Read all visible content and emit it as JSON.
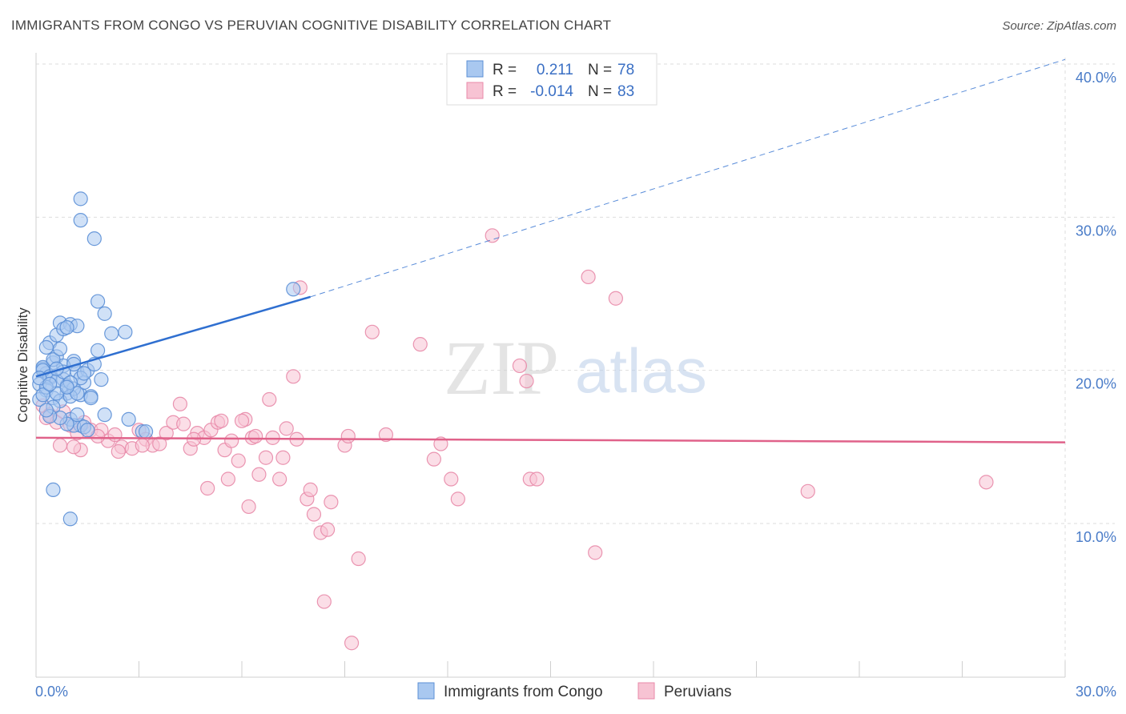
{
  "header": {
    "title": "IMMIGRANTS FROM CONGO VS PERUVIAN COGNITIVE DISABILITY CORRELATION CHART",
    "source": "Source: ZipAtlas.com"
  },
  "watermark": {
    "zip": "ZIP",
    "atlas": "atlas"
  },
  "legend": {
    "r_label": "R =",
    "n_label": "N =",
    "rows": [
      {
        "r": "0.211",
        "n": "78",
        "color": "#a9c8f0"
      },
      {
        "r": "-0.014",
        "n": "83",
        "color": "#f5b8cb"
      }
    ]
  },
  "colors": {
    "blue_fill": "#a9c8f0",
    "blue_stroke": "#5b8fd6",
    "blue_line": "#2f6fd0",
    "pink_fill": "#f7c3d3",
    "pink_stroke": "#e88aa8",
    "pink_line": "#e0628a"
  },
  "chart_data": {
    "type": "scatter",
    "title": "IMMIGRANTS FROM CONGO VS PERUVIAN COGNITIVE DISABILITY CORRELATION CHART",
    "xlabel": "",
    "ylabel": "Cognitive Disability",
    "xlim": [
      0,
      30
    ],
    "ylim": [
      0,
      40
    ],
    "x_tick_labels": [
      "0.0%",
      "30.0%"
    ],
    "y_ticks": [
      10,
      20,
      30,
      40
    ],
    "y_tick_labels": [
      "10.0%",
      "20.0%",
      "30.0%",
      "40.0%"
    ],
    "grid": true,
    "legend_position": "bottom",
    "series": [
      {
        "name": "Immigrants from Congo",
        "color": "#a9c8f0",
        "r": 0.211,
        "n": 78,
        "trend": {
          "x": [
            0.0,
            8.0
          ],
          "y": [
            19.6,
            24.8
          ],
          "dashed_to": [
            30.0,
            40.3
          ]
        },
        "points": [
          [
            0.1,
            19.1
          ],
          [
            0.2,
            20.1
          ],
          [
            0.3,
            18.7
          ],
          [
            0.4,
            21.8
          ],
          [
            0.5,
            20.5
          ],
          [
            0.6,
            22.3
          ],
          [
            0.7,
            23.1
          ],
          [
            0.8,
            19.4
          ],
          [
            0.5,
            18.2
          ],
          [
            0.9,
            18.5
          ],
          [
            1.0,
            23.0
          ],
          [
            1.1,
            20.6
          ],
          [
            1.2,
            19.9
          ],
          [
            1.3,
            18.4
          ],
          [
            1.5,
            20.0
          ],
          [
            1.4,
            19.2
          ],
          [
            0.3,
            19.8
          ],
          [
            0.6,
            20.9
          ],
          [
            0.8,
            22.7
          ],
          [
            1.2,
            22.9
          ],
          [
            1.3,
            16.4
          ],
          [
            1.6,
            18.3
          ],
          [
            1.8,
            21.3
          ],
          [
            1.9,
            19.4
          ],
          [
            2.0,
            23.7
          ],
          [
            0.2,
            20.2
          ],
          [
            0.4,
            19.5
          ],
          [
            0.9,
            19.0
          ],
          [
            1.1,
            18.8
          ],
          [
            0.7,
            18.0
          ],
          [
            1.0,
            16.8
          ],
          [
            1.7,
            20.4
          ],
          [
            2.2,
            22.4
          ],
          [
            2.6,
            22.5
          ],
          [
            2.7,
            16.8
          ],
          [
            3.1,
            16.0
          ],
          [
            3.2,
            16.0
          ],
          [
            1.8,
            24.5
          ],
          [
            1.3,
            29.8
          ],
          [
            1.7,
            28.6
          ],
          [
            1.3,
            31.2
          ],
          [
            7.5,
            25.3
          ],
          [
            0.5,
            12.2
          ],
          [
            1.0,
            10.3
          ],
          [
            0.1,
            18.1
          ],
          [
            0.2,
            20.0
          ],
          [
            0.3,
            21.5
          ],
          [
            0.4,
            19.6
          ],
          [
            0.6,
            19.3
          ],
          [
            0.8,
            20.3
          ],
          [
            1.0,
            18.3
          ],
          [
            1.1,
            16.4
          ],
          [
            0.9,
            16.5
          ],
          [
            1.4,
            16.3
          ],
          [
            1.5,
            16.1
          ],
          [
            1.6,
            18.2
          ],
          [
            2.0,
            17.1
          ],
          [
            0.5,
            17.6
          ],
          [
            0.7,
            16.9
          ],
          [
            0.6,
            18.5
          ],
          [
            0.4,
            17.0
          ],
          [
            1.2,
            17.1
          ],
          [
            0.3,
            18.9
          ],
          [
            0.5,
            20.7
          ],
          [
            0.7,
            21.4
          ],
          [
            0.9,
            22.8
          ],
          [
            1.1,
            20.4
          ],
          [
            1.3,
            19.5
          ],
          [
            0.2,
            18.4
          ],
          [
            0.1,
            19.5
          ],
          [
            0.8,
            19.9
          ],
          [
            0.6,
            20.1
          ],
          [
            1.0,
            19.2
          ],
          [
            1.2,
            18.5
          ],
          [
            0.4,
            19.1
          ],
          [
            0.9,
            18.9
          ],
          [
            1.4,
            19.8
          ],
          [
            0.3,
            17.4
          ]
        ]
      },
      {
        "name": "Peruvians",
        "color": "#f7c3d3",
        "r": -0.014,
        "n": 83,
        "trend": {
          "x": [
            0.0,
            30.0
          ],
          "y": [
            15.6,
            15.3
          ]
        },
        "points": [
          [
            0.2,
            17.7
          ],
          [
            0.4,
            17.1
          ],
          [
            0.6,
            16.6
          ],
          [
            0.8,
            17.3
          ],
          [
            1.0,
            16.4
          ],
          [
            1.2,
            15.9
          ],
          [
            1.4,
            16.6
          ],
          [
            1.6,
            16.1
          ],
          [
            1.9,
            16.1
          ],
          [
            2.1,
            15.4
          ],
          [
            2.3,
            15.8
          ],
          [
            2.5,
            15.0
          ],
          [
            2.8,
            14.9
          ],
          [
            3.0,
            16.1
          ],
          [
            3.2,
            15.5
          ],
          [
            3.4,
            15.1
          ],
          [
            3.6,
            15.2
          ],
          [
            3.8,
            15.9
          ],
          [
            4.0,
            16.6
          ],
          [
            4.3,
            16.5
          ],
          [
            4.5,
            14.9
          ],
          [
            4.7,
            15.9
          ],
          [
            4.9,
            15.6
          ],
          [
            5.1,
            16.1
          ],
          [
            5.3,
            16.6
          ],
          [
            5.5,
            14.8
          ],
          [
            5.7,
            15.4
          ],
          [
            5.9,
            14.1
          ],
          [
            6.1,
            16.8
          ],
          [
            6.3,
            15.6
          ],
          [
            6.5,
            13.2
          ],
          [
            6.7,
            14.3
          ],
          [
            6.9,
            15.6
          ],
          [
            7.1,
            12.9
          ],
          [
            7.3,
            16.2
          ],
          [
            7.5,
            19.6
          ],
          [
            7.7,
            25.4
          ],
          [
            7.9,
            11.6
          ],
          [
            8.1,
            10.6
          ],
          [
            8.3,
            9.4
          ],
          [
            8.5,
            9.6
          ],
          [
            9.0,
            15.1
          ],
          [
            9.1,
            15.7
          ],
          [
            9.8,
            22.5
          ],
          [
            11.2,
            21.7
          ],
          [
            11.6,
            14.2
          ],
          [
            12.3,
            11.6
          ],
          [
            13.3,
            28.8
          ],
          [
            14.1,
            20.3
          ],
          [
            14.3,
            19.3
          ],
          [
            14.4,
            12.9
          ],
          [
            16.1,
            26.1
          ],
          [
            16.3,
            8.1
          ],
          [
            16.9,
            24.7
          ],
          [
            22.5,
            12.1
          ],
          [
            27.7,
            12.7
          ],
          [
            0.3,
            16.9
          ],
          [
            0.7,
            15.1
          ],
          [
            1.3,
            14.8
          ],
          [
            1.8,
            15.7
          ],
          [
            2.4,
            14.7
          ],
          [
            3.1,
            15.1
          ],
          [
            4.2,
            17.8
          ],
          [
            4.6,
            15.5
          ],
          [
            5.0,
            12.3
          ],
          [
            5.6,
            12.9
          ],
          [
            6.0,
            16.7
          ],
          [
            6.4,
            15.7
          ],
          [
            6.8,
            18.1
          ],
          [
            7.2,
            14.3
          ],
          [
            7.6,
            15.5
          ],
          [
            8.0,
            12.2
          ],
          [
            8.4,
            4.9
          ],
          [
            8.6,
            11.4
          ],
          [
            9.2,
            2.2
          ],
          [
            9.4,
            7.7
          ],
          [
            10.2,
            15.8
          ],
          [
            11.8,
            15.2
          ],
          [
            12.1,
            12.9
          ],
          [
            14.6,
            12.9
          ],
          [
            6.2,
            11.1
          ],
          [
            5.4,
            16.7
          ],
          [
            1.1,
            15.0
          ]
        ]
      }
    ]
  }
}
